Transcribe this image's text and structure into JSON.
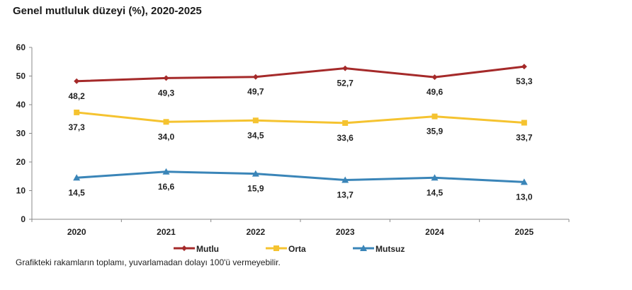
{
  "title": "Genel mutluluk düzeyi (%), 2020-2025",
  "footnote": "Grafikteki rakamların toplamı, yuvarlamadan dolayı 100'ü vermeyebilir.",
  "chart_data": {
    "type": "line",
    "title": "Genel mutluluk düzeyi (%), 2020-2025",
    "categories": [
      "2020",
      "2021",
      "2022",
      "2023",
      "2024",
      "2025"
    ],
    "ylim": [
      0,
      60
    ],
    "yticks": [
      0,
      10,
      20,
      30,
      40,
      50,
      60
    ],
    "grid": false,
    "legend": "bottom",
    "series": [
      {
        "name": "Mutlu",
        "color": "#a52a2a",
        "marker": "diamond",
        "values": [
          48.2,
          49.3,
          49.7,
          52.7,
          49.6,
          53.3
        ],
        "labels": [
          "48,2",
          "49,3",
          "49,7",
          "52,7",
          "49,6",
          "53,3"
        ]
      },
      {
        "name": "Orta",
        "color": "#f5c330",
        "marker": "square",
        "values": [
          37.3,
          34.0,
          34.5,
          33.6,
          35.9,
          33.7
        ],
        "labels": [
          "37,3",
          "34,0",
          "34,5",
          "33,6",
          "35,9",
          "33,7"
        ]
      },
      {
        "name": "Mutsuz",
        "color": "#3a85b8",
        "marker": "triangle",
        "values": [
          14.5,
          16.6,
          15.9,
          13.7,
          14.5,
          13.0
        ],
        "labels": [
          "14,5",
          "16,6",
          "15,9",
          "13,7",
          "14,5",
          "13,0"
        ]
      }
    ]
  }
}
